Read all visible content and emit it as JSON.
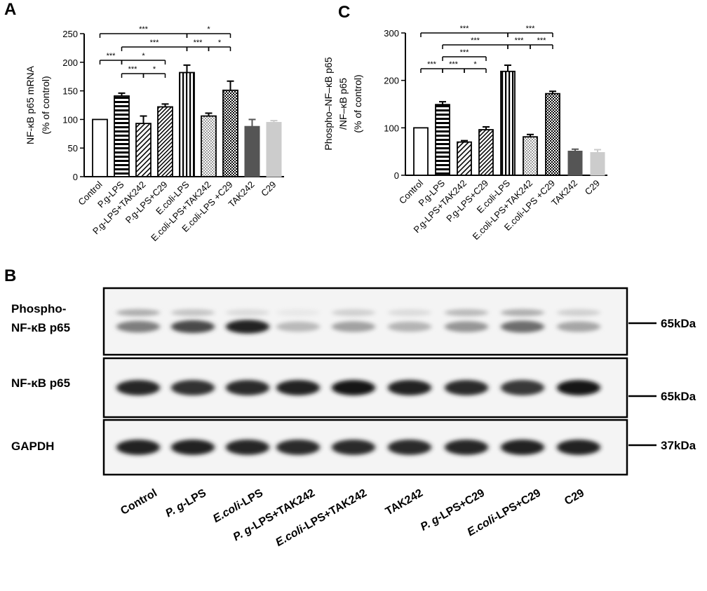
{
  "panels": {
    "a": {
      "letter": "A"
    },
    "b": {
      "letter": "B"
    },
    "c": {
      "letter": "C"
    }
  },
  "chart_data": [
    {
      "type": "bar",
      "panel": "A",
      "ylabel_lines": [
        "NF-κB p65 mRNA",
        "(% of control)"
      ],
      "ylim": [
        0,
        250
      ],
      "yticks": [
        0,
        50,
        100,
        150,
        200,
        250
      ],
      "categories": [
        "Control",
        "P.g-LPS",
        "P.g-LPS+TAK242",
        "P.g-LPS+C29",
        "E.coli-LPS",
        "E.coli-LPS+TAK242",
        "E.coli-LPS +C29",
        "TAK242",
        "C29"
      ],
      "values": [
        100,
        141,
        93,
        122,
        182,
        106,
        151,
        88,
        95
      ],
      "errors": [
        0,
        5,
        13,
        5,
        13,
        5,
        16,
        12,
        3
      ],
      "fills": [
        "white",
        "hlines",
        "diag",
        "diag2",
        "vlines",
        "dots",
        "checker",
        "#555555",
        "#cccccc"
      ],
      "significance": [
        {
          "from": 0,
          "to": 4,
          "level": 0,
          "label": "***"
        },
        {
          "from": 4,
          "to": 6,
          "level": 0,
          "label": "*"
        },
        {
          "from": 1,
          "to": 4,
          "level": 1,
          "label": "***"
        },
        {
          "from": 4,
          "to": 5,
          "level": 1,
          "label": "***"
        },
        {
          "from": 5,
          "to": 6,
          "level": 1,
          "label": "*"
        },
        {
          "from": 0,
          "to": 1,
          "level": 2,
          "label": "***"
        },
        {
          "from": 1,
          "to": 3,
          "level": 2,
          "label": "*"
        },
        {
          "from": 1,
          "to": 2,
          "level": 3,
          "label": "***"
        },
        {
          "from": 2,
          "to": 3,
          "level": 3,
          "label": "*"
        }
      ]
    },
    {
      "type": "bar",
      "panel": "C",
      "ylabel_lines": [
        "Phospho–NF–κB p65",
        "/NF–κB p65",
        "(% of control)"
      ],
      "ylim": [
        0,
        300
      ],
      "yticks": [
        0,
        100,
        200,
        300
      ],
      "categories": [
        "Control",
        "P.g-LPS",
        "P.g-LPS+TAK242",
        "P.g-LPS+C29",
        "E.coli-LPS",
        "E.coli-LPS+TAK242",
        "E.coli-LPS +C29",
        "TAK242",
        "C29"
      ],
      "values": [
        100,
        149,
        70,
        96,
        219,
        81,
        172,
        51,
        48
      ],
      "errors": [
        0,
        6,
        3,
        6,
        13,
        5,
        5,
        4,
        6
      ],
      "fills": [
        "white",
        "hlines",
        "diag",
        "diag2",
        "vlines",
        "dots",
        "checker",
        "#555555",
        "#cccccc"
      ],
      "significance": [
        {
          "from": 0,
          "to": 4,
          "level": 0,
          "label": "***"
        },
        {
          "from": 4,
          "to": 6,
          "level": 0,
          "label": "***"
        },
        {
          "from": 1,
          "to": 4,
          "level": 1,
          "label": "***"
        },
        {
          "from": 4,
          "to": 5,
          "level": 1,
          "label": "***"
        },
        {
          "from": 5,
          "to": 6,
          "level": 1,
          "label": "***"
        },
        {
          "from": 1,
          "to": 3,
          "level": 2,
          "label": "***"
        },
        {
          "from": 0,
          "to": 1,
          "level": 3,
          "label": "***"
        },
        {
          "from": 1,
          "to": 2,
          "level": 3,
          "label": "***"
        },
        {
          "from": 2,
          "to": 3,
          "level": 3,
          "label": "*"
        }
      ]
    }
  ],
  "blot": {
    "rows": [
      {
        "label_lines": [
          "Phospho-",
          "NF-κB p65"
        ],
        "marker": "65kDa",
        "intensities": [
          0.55,
          0.78,
          0.95,
          0.3,
          0.4,
          0.32,
          0.45,
          0.62,
          0.38
        ],
        "upper_band": [
          0.35,
          0.25,
          0.15,
          0.1,
          0.2,
          0.15,
          0.3,
          0.35,
          0.2
        ]
      },
      {
        "label_lines": [
          "NF-κB p65"
        ],
        "marker": "65kDa",
        "intensities": [
          0.92,
          0.88,
          0.9,
          0.95,
          1.0,
          0.95,
          0.9,
          0.85,
          1.0
        ],
        "upper_band": [
          0,
          0,
          0,
          0,
          0,
          0,
          0,
          0,
          0
        ]
      },
      {
        "label_lines": [
          "GAPDH"
        ],
        "marker": "37kDa",
        "intensities": [
          0.95,
          0.95,
          0.92,
          0.9,
          0.9,
          0.9,
          0.92,
          0.95,
          0.95
        ],
        "upper_band": [
          0,
          0,
          0,
          0,
          0,
          0,
          0,
          0,
          0
        ]
      }
    ],
    "lanes": [
      {
        "parts": [
          {
            "t": "Control",
            "i": false
          }
        ]
      },
      {
        "parts": [
          {
            "t": "P. g",
            "i": true
          },
          {
            "t": "-LPS",
            "i": false
          }
        ]
      },
      {
        "parts": [
          {
            "t": "E.coli",
            "i": true
          },
          {
            "t": "-LPS",
            "i": false
          }
        ]
      },
      {
        "parts": [
          {
            "t": "P. g",
            "i": true
          },
          {
            "t": "-LPS+TAK242",
            "i": false
          }
        ]
      },
      {
        "parts": [
          {
            "t": "E.coli",
            "i": true
          },
          {
            "t": "-LPS+TAK242",
            "i": false
          }
        ]
      },
      {
        "parts": [
          {
            "t": "TAK242",
            "i": false
          }
        ]
      },
      {
        "parts": [
          {
            "t": "P. g",
            "i": true
          },
          {
            "t": "-LPS+C29",
            "i": false
          }
        ]
      },
      {
        "parts": [
          {
            "t": "E.coli",
            "i": true
          },
          {
            "t": "-LPS+C29",
            "i": false
          }
        ]
      },
      {
        "parts": [
          {
            "t": "C29",
            "i": false
          }
        ]
      }
    ]
  }
}
